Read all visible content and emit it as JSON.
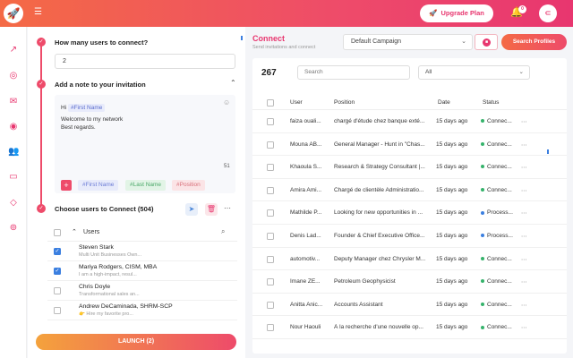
{
  "header": {
    "logo_icon": "rocket-icon",
    "menu_icon": "menu-icon",
    "upgrade_label": "Upgrade Plan",
    "notification_count": "0",
    "avatar_icon": "brand-icon"
  },
  "rail": {
    "icons": [
      "chart-icon",
      "target-icon",
      "mail-icon",
      "eye-icon",
      "users-icon",
      "message-icon",
      "diamond-icon",
      "settings-icon"
    ]
  },
  "steps": {
    "step1_title": "How many users to connect?",
    "step1_value": "2",
    "step2_title": "Add a note to your invitation",
    "note_hi": "Hi",
    "note_tag": "#First Name",
    "note_line2": "Welcome to my network",
    "note_line3": "Best regards.",
    "char_count": "51",
    "chips": {
      "first_name": "#First Name",
      "last_name": "#Last Name",
      "position": "#Position"
    },
    "step3_title": "Choose users to Connect (504)"
  },
  "users_list": {
    "header_label": "Users",
    "items": [
      {
        "name": "Steven Stark",
        "sub": "Multi Unit Businesses Own...",
        "checked": true
      },
      {
        "name": "Mariya Rodgers, CISM, MBA",
        "sub": "I am a high-impact, resul...",
        "checked": true
      },
      {
        "name": "Chris Doyle",
        "sub": "Transformational sales an...",
        "checked": false
      },
      {
        "name": "Andrew DeCaminada, SHRM-SCP",
        "sub": "👉 Hire my favorite pro...",
        "checked": false
      }
    ]
  },
  "launch_label": "LAUNCH (2)",
  "connect": {
    "title": "Connect",
    "subtitle": "Send invitations and connect",
    "campaign_value": "Default Campaign",
    "search_profiles_label": "Search Profiles",
    "count": "267",
    "search_placeholder": "Search",
    "filter_value": "All",
    "columns": {
      "user": "User",
      "position": "Position",
      "date": "Date",
      "status": "Status"
    },
    "status_colors": {
      "connected": "#35b36b",
      "processing": "#3b7fe0"
    },
    "rows": [
      {
        "user": "faiza ouali...",
        "position": "chargé d'étude chez banque exté...",
        "date": "15 days ago",
        "status": "Connec...",
        "status_type": "connected"
      },
      {
        "user": "Mouna AB...",
        "position": "General Manager - Hunt in \"Chas...",
        "date": "15 days ago",
        "status": "Connec...",
        "status_type": "connected"
      },
      {
        "user": "Khaoula S...",
        "position": "Research & Strategy Consultant |...",
        "date": "15 days ago",
        "status": "Connec...",
        "status_type": "connected"
      },
      {
        "user": "Amira Ami...",
        "position": "Chargé de clientèle Administratio...",
        "date": "15 days ago",
        "status": "Connec...",
        "status_type": "connected"
      },
      {
        "user": "Mathilde P...",
        "position": "Looking for new opportunities in ...",
        "date": "15 days ago",
        "status": "Process...",
        "status_type": "processing"
      },
      {
        "user": "Denis Lad...",
        "position": "Founder & Chief Executive Office...",
        "date": "15 days ago",
        "status": "Process...",
        "status_type": "processing"
      },
      {
        "user": "automotiv...",
        "position": "Deputy Manager chez Chrysler M...",
        "date": "15 days ago",
        "status": "Connec...",
        "status_type": "connected"
      },
      {
        "user": "Imane ZE...",
        "position": "Petroleum Geophysicist",
        "date": "15 days ago",
        "status": "Connec...",
        "status_type": "connected"
      },
      {
        "user": "Anitta Anic...",
        "position": "Accounts Assistant",
        "date": "15 days ago",
        "status": "Connec...",
        "status_type": "connected"
      },
      {
        "user": "Nour Haouli",
        "position": "À la recherche d'une nouvelle op...",
        "date": "15 days ago",
        "status": "Connec...",
        "status_type": "connected"
      }
    ]
  }
}
